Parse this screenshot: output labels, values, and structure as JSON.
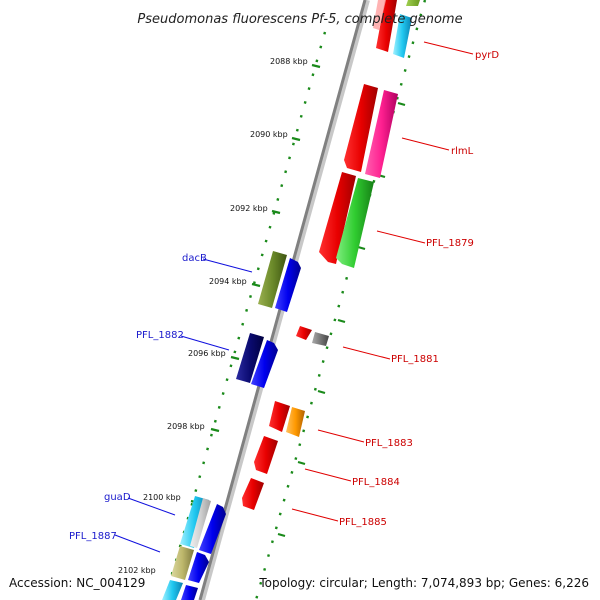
{
  "title": "Pseudomonas fluorescens Pf-5, complete genome",
  "accession": "Accession: NC_004129",
  "topology": "Topology: circular; Length: 7,074,893 bp; Genes: 6,226",
  "ticks": [
    "2088 kbp",
    "2090 kbp",
    "2092 kbp",
    "2094 kbp",
    "2096 kbp",
    "2098 kbp",
    "2100 kbp",
    "2102 kbp"
  ],
  "genes": [
    {
      "name": "pyrD",
      "strand": "forward",
      "color": "#cc0000"
    },
    {
      "name": "rlmL",
      "strand": "forward",
      "color": "#cc0000"
    },
    {
      "name": "PFL_1879",
      "strand": "forward",
      "color": "#cc0000"
    },
    {
      "name": "PFL_1881",
      "strand": "forward",
      "color": "#cc0000"
    },
    {
      "name": "PFL_1883",
      "strand": "forward",
      "color": "#cc0000"
    },
    {
      "name": "PFL_1884",
      "strand": "forward",
      "color": "#cc0000"
    },
    {
      "name": "PFL_1885",
      "strand": "forward",
      "color": "#cc0000"
    },
    {
      "name": "dacB",
      "strand": "reverse",
      "color": "#1a1acc"
    },
    {
      "name": "PFL_1882",
      "strand": "reverse",
      "color": "#1a1acc"
    },
    {
      "name": "guaD",
      "strand": "reverse",
      "color": "#1a1acc"
    },
    {
      "name": "PFL_1887",
      "strand": "reverse",
      "color": "#1a1acc"
    }
  ]
}
